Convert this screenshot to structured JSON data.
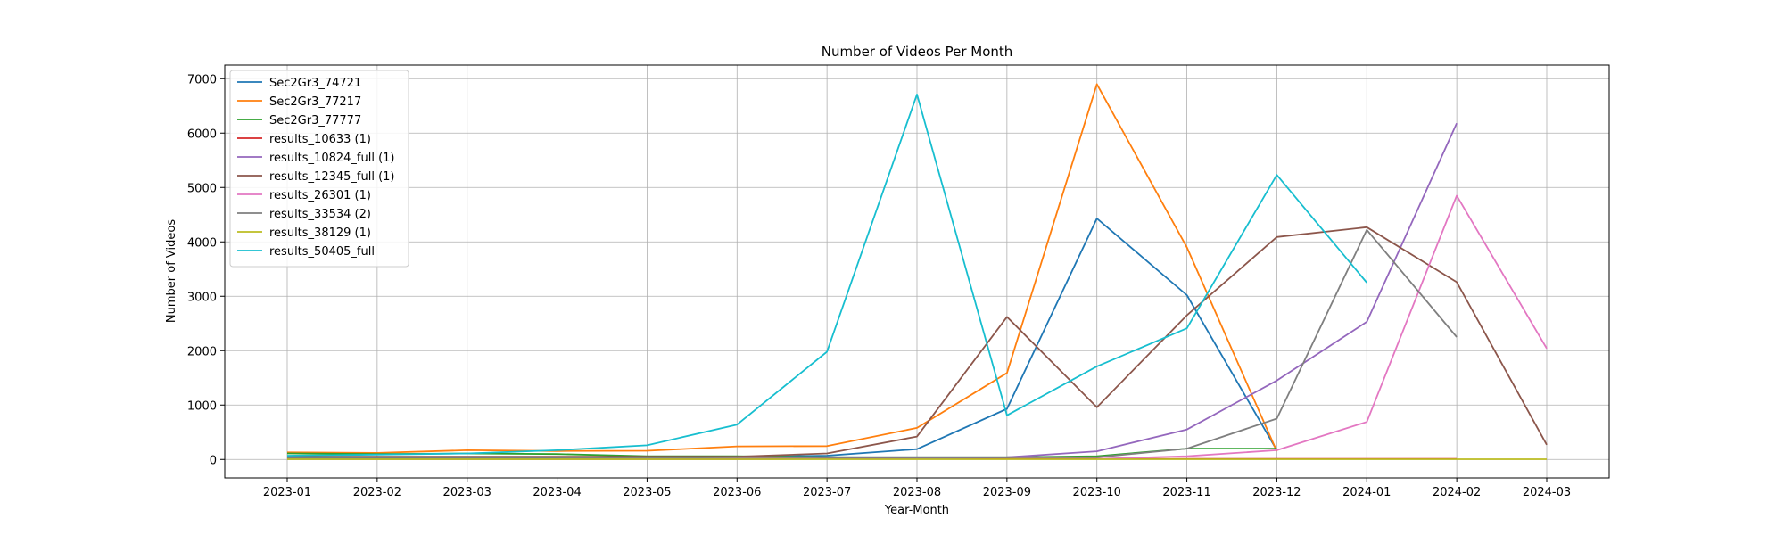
{
  "chart_data": {
    "type": "line",
    "title": "Number of Videos Per Month",
    "xlabel": "Year-Month",
    "ylabel": "Number of Videos",
    "categories": [
      "2023-01",
      "2023-02",
      "2023-03",
      "2023-04",
      "2023-05",
      "2023-06",
      "2023-07",
      "2023-08",
      "2023-09",
      "2023-10",
      "2023-11",
      "2023-12",
      "2024-01",
      "2024-02",
      "2024-03"
    ],
    "ylim": [
      -340,
      7250
    ],
    "yticks": [
      0,
      1000,
      2000,
      3000,
      4000,
      5000,
      6000,
      7000
    ],
    "grid": true,
    "legend_position": "upper-left",
    "series": [
      {
        "name": "Sec2Gr3_74721",
        "color": "#1f77b4",
        "values": [
          30,
          40,
          40,
          40,
          40,
          45,
          70,
          190,
          930,
          4430,
          3020,
          170,
          null,
          null,
          null
        ]
      },
      {
        "name": "Sec2Gr3_77217",
        "color": "#ff7f0e",
        "values": [
          130,
          120,
          170,
          155,
          160,
          240,
          245,
          580,
          1590,
          6900,
          3900,
          150,
          null,
          null,
          null
        ]
      },
      {
        "name": "Sec2Gr3_77777",
        "color": "#2ca02c",
        "values": [
          110,
          100,
          110,
          100,
          60,
          60,
          40,
          40,
          40,
          60,
          200,
          200,
          null,
          null,
          null
        ]
      },
      {
        "name": "results_10633 (1)",
        "color": "#d62728",
        "values": [
          10,
          10,
          10,
          10,
          10,
          10,
          10,
          10,
          10,
          10,
          10,
          10,
          10,
          10,
          null
        ]
      },
      {
        "name": "results_10824_full (1)",
        "color": "#9467bd",
        "values": [
          5,
          5,
          5,
          5,
          5,
          5,
          10,
          20,
          40,
          150,
          550,
          1450,
          2530,
          6180,
          null
        ]
      },
      {
        "name": "results_12345_full (1)",
        "color": "#8c564b",
        "values": [
          50,
          50,
          50,
          50,
          50,
          50,
          110,
          420,
          2620,
          960,
          2650,
          4090,
          4270,
          3260,
          270
        ]
      },
      {
        "name": "results_26301 (1)",
        "color": "#e377c2",
        "values": [
          null,
          null,
          null,
          null,
          null,
          null,
          null,
          null,
          null,
          10,
          60,
          170,
          690,
          4850,
          2040
        ]
      },
      {
        "name": "results_33534 (2)",
        "color": "#7f7f7f",
        "values": [
          20,
          20,
          20,
          20,
          30,
          40,
          40,
          40,
          40,
          40,
          200,
          750,
          4220,
          2250,
          null
        ]
      },
      {
        "name": "results_38129 (1)",
        "color": "#bcbd22",
        "values": [
          5,
          5,
          5,
          5,
          5,
          5,
          5,
          5,
          5,
          5,
          5,
          5,
          5,
          5,
          5
        ]
      },
      {
        "name": "results_50405_full",
        "color": "#17becf",
        "values": [
          70,
          90,
          110,
          170,
          260,
          640,
          1980,
          6710,
          810,
          1710,
          2410,
          5230,
          3250,
          null,
          null
        ]
      }
    ]
  }
}
